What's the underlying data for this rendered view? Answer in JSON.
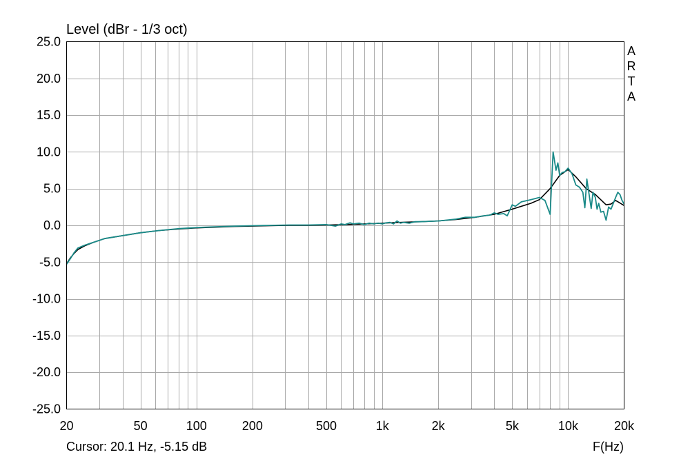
{
  "chart_data": {
    "type": "line",
    "title": "Level (dBr - 1/3 oct)",
    "xlabel": "F(Hz)",
    "ylabel": "",
    "xscale": "log",
    "xlim": [
      20,
      20000
    ],
    "ylim": [
      -25,
      25
    ],
    "grid": true,
    "y_ticks": [
      "25.0",
      "20.0",
      "15.0",
      "10.0",
      "5.0",
      "0.0",
      "-5.0",
      "-10.0",
      "-15.0",
      "-20.0",
      "-25.0"
    ],
    "x_tick_values": [
      20,
      50,
      100,
      200,
      500,
      1000,
      2000,
      5000,
      10000,
      20000
    ],
    "x_tick_labels": [
      "20",
      "50",
      "100",
      "200",
      "500",
      "1k",
      "2k",
      "5k",
      "10k",
      "20k"
    ],
    "brand_letters": [
      "A",
      "R",
      "T",
      "A"
    ],
    "cursor_text": "Cursor: 20.1 Hz, -5.15 dB",
    "series": [
      {
        "color": "#000000",
        "x": [
          20,
          21,
          22,
          23,
          25,
          28,
          32,
          40,
          50,
          63,
          80,
          100,
          125,
          160,
          200,
          250,
          315,
          400,
          500,
          630,
          800,
          1000,
          1250,
          1600,
          2000,
          2500,
          3150,
          4000,
          5000,
          6300,
          7000,
          8000,
          9000,
          10000,
          11000,
          12500,
          14000,
          16000,
          17000,
          18000,
          20000
        ],
        "y": [
          -5.2,
          -4.4,
          -3.8,
          -3.3,
          -2.8,
          -2.3,
          -1.8,
          -1.4,
          -1.0,
          -0.7,
          -0.5,
          -0.35,
          -0.25,
          -0.15,
          -0.1,
          -0.05,
          0.0,
          0.0,
          0.05,
          0.1,
          0.2,
          0.3,
          0.4,
          0.5,
          0.6,
          0.8,
          1.1,
          1.5,
          2.2,
          3.0,
          3.5,
          5.0,
          6.8,
          7.6,
          6.6,
          5.0,
          4.2,
          2.8,
          2.9,
          3.4,
          2.7
        ]
      },
      {
        "color": "#1a8a88",
        "x": [
          20,
          21,
          22,
          23,
          25,
          28,
          32,
          40,
          50,
          63,
          80,
          100,
          125,
          160,
          200,
          250,
          315,
          400,
          500,
          560,
          600,
          630,
          670,
          700,
          750,
          800,
          850,
          900,
          950,
          1000,
          1050,
          1100,
          1150,
          1200,
          1250,
          1300,
          1400,
          1500,
          1600,
          1800,
          2000,
          2200,
          2500,
          2800,
          3150,
          3500,
          3800,
          4000,
          4200,
          4500,
          4700,
          5000,
          5200,
          5600,
          6300,
          7000,
          7500,
          8000,
          8300,
          8600,
          8800,
          9000,
          9300,
          9600,
          10000,
          10500,
          11000,
          11500,
          12000,
          12300,
          12600,
          13000,
          13300,
          13600,
          14000,
          14300,
          14600,
          15000,
          15500,
          16000,
          16500,
          17000,
          17500,
          18000,
          18500,
          19000,
          19500,
          20000
        ],
        "y": [
          -5.3,
          -4.5,
          -3.7,
          -3.1,
          -2.7,
          -2.3,
          -1.8,
          -1.4,
          -1.0,
          -0.7,
          -0.45,
          -0.3,
          -0.2,
          -0.1,
          -0.05,
          0.0,
          0.05,
          0.05,
          0.1,
          -0.1,
          0.2,
          0.1,
          0.35,
          0.2,
          0.3,
          0.1,
          0.3,
          0.2,
          0.3,
          0.2,
          0.35,
          0.4,
          0.2,
          0.6,
          0.3,
          0.4,
          0.3,
          0.5,
          0.5,
          0.55,
          0.6,
          0.7,
          0.85,
          1.1,
          1.1,
          1.3,
          1.4,
          1.7,
          1.5,
          1.6,
          1.3,
          2.8,
          2.6,
          3.2,
          3.5,
          3.8,
          3.4,
          1.5,
          10.0,
          7.5,
          8.5,
          6.8,
          7.2,
          7.3,
          7.8,
          7.0,
          5.5,
          5.2,
          4.5,
          2.4,
          6.3,
          4.0,
          2.3,
          4.5,
          3.8,
          2.2,
          3.0,
          1.8,
          1.9,
          0.7,
          2.5,
          2.2,
          3.0,
          3.8,
          4.5,
          4.2,
          3.4,
          2.9
        ]
      }
    ]
  }
}
